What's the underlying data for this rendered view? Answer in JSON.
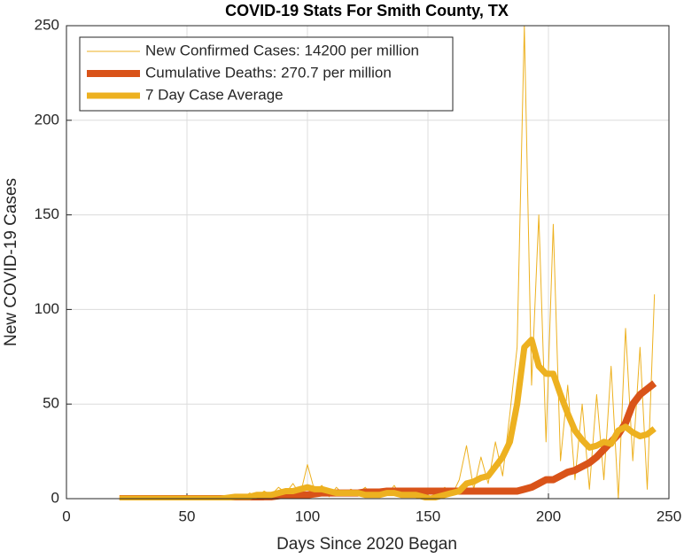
{
  "chart_data": {
    "type": "line",
    "title": "COVID-19 Stats For Smith County, TX",
    "x_label": "Days Since 2020 Began",
    "y_label": "New COVID-19 Cases",
    "x": [
      22,
      25,
      28,
      31,
      34,
      37,
      40,
      43,
      46,
      49,
      52,
      55,
      58,
      61,
      64,
      67,
      70,
      73,
      76,
      79,
      82,
      85,
      88,
      91,
      94,
      97,
      100,
      103,
      106,
      109,
      112,
      115,
      118,
      121,
      124,
      127,
      130,
      133,
      136,
      139,
      142,
      145,
      148,
      151,
      154,
      157,
      160,
      163,
      166,
      169,
      172,
      175,
      178,
      181,
      184,
      187,
      190,
      193,
      196,
      199,
      202,
      205,
      208,
      211,
      214,
      217,
      220,
      223,
      226,
      229,
      232,
      235,
      238,
      241,
      244
    ],
    "series": [
      {
        "name": "New Confirmed Cases: 14200 per million",
        "color": "#EDB120",
        "values": [
          0,
          0,
          0,
          0,
          0,
          0,
          0,
          0,
          0,
          0,
          0,
          0,
          0,
          1,
          0,
          1,
          2,
          0,
          3,
          1,
          4,
          2,
          6,
          3,
          8,
          2,
          18,
          4,
          7,
          1,
          6,
          2,
          5,
          3,
          6,
          1,
          5,
          2,
          7,
          1,
          4,
          2,
          1,
          0,
          3,
          6,
          2,
          10,
          28,
          5,
          22,
          8,
          30,
          12,
          45,
          80,
          250,
          60,
          150,
          30,
          145,
          20,
          60,
          10,
          50,
          5,
          55,
          10,
          70,
          0,
          90,
          20,
          80,
          5,
          108
        ]
      },
      {
        "name": "Cumulative Deaths: 270.7 per million",
        "color": "#D95319",
        "values": [
          0,
          0,
          0,
          0,
          0,
          0,
          0,
          0,
          0,
          0,
          0,
          0,
          0,
          0,
          0,
          0,
          0,
          0,
          0,
          0.5,
          1,
          1,
          1.5,
          2,
          2,
          2,
          2,
          2.5,
          3,
          3,
          3,
          3,
          3,
          3,
          3.5,
          3.5,
          3.5,
          4,
          4,
          4,
          4,
          4,
          4,
          4,
          4,
          4,
          4,
          4,
          4,
          4,
          4,
          4,
          4,
          4,
          4,
          4,
          5,
          6,
          8,
          10,
          10,
          12,
          14,
          15,
          17,
          19,
          22,
          26,
          30,
          34,
          40,
          50,
          55,
          58,
          61
        ]
      },
      {
        "name": "7 Day Case Average",
        "color": "#EDB120",
        "values": [
          0,
          0,
          0,
          0,
          0,
          0,
          0,
          0,
          0,
          0,
          0,
          0,
          0,
          0,
          0,
          0.5,
          1,
          1,
          1,
          2,
          2,
          2,
          3,
          4,
          4,
          5,
          6,
          5,
          5,
          4,
          3,
          3,
          3,
          3,
          2,
          2,
          2,
          3,
          3,
          2,
          2,
          2,
          1,
          0,
          1,
          2,
          3,
          4,
          8,
          9,
          11,
          12,
          17,
          22,
          30,
          50,
          80,
          84,
          70,
          66,
          66,
          55,
          45,
          36,
          31,
          27,
          28,
          30,
          29,
          36,
          38,
          35,
          33,
          34,
          37
        ]
      }
    ],
    "xlim": [
      0,
      250
    ],
    "xticks": [
      0,
      50,
      100,
      150,
      200,
      250
    ],
    "ylim": [
      0,
      250
    ],
    "yticks": [
      0,
      50,
      100,
      150,
      200,
      250
    ],
    "grid": true,
    "legend_position": "upper-left"
  }
}
